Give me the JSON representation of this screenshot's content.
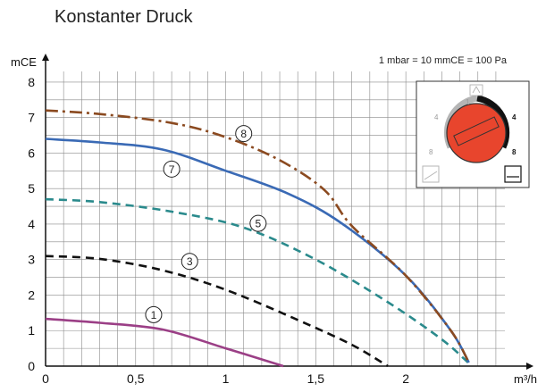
{
  "header": {
    "title": "Konstanter Druck",
    "unit_note": "1 mbar = 10 mmCE = 100 Pa"
  },
  "colors": {
    "grid": "#8a8a8a",
    "axis": "#111111",
    "curve_1": "#9b3f86",
    "curve_3": "#111111",
    "curve_5": "#2a8a8c",
    "curve_7": "#3a6ab5",
    "curve_8": "#8b4a20",
    "dial_red": "#e8452d",
    "dial_black": "#111111",
    "dial_gray": "#9a9a9a"
  },
  "chart_data": {
    "type": "line",
    "title": "Konstanter Druck",
    "xlabel": "m³/h",
    "ylabel": "mCE",
    "xlim": [
      0,
      2.55
    ],
    "ylim": [
      0,
      8.3
    ],
    "grid": true,
    "x_ticks": [
      {
        "value": 0,
        "label": "0"
      },
      {
        "value": 0.5,
        "label": "0,5"
      },
      {
        "value": 1,
        "label": "1"
      },
      {
        "value": 1.5,
        "label": "1,5"
      },
      {
        "value": 2,
        "label": "2"
      }
    ],
    "y_ticks": [
      {
        "value": 0,
        "label": "0"
      },
      {
        "value": 1,
        "label": "1"
      },
      {
        "value": 2,
        "label": "2"
      },
      {
        "value": 3,
        "label": "3"
      },
      {
        "value": 4,
        "label": "4"
      },
      {
        "value": 5,
        "label": "5"
      },
      {
        "value": 6,
        "label": "6"
      },
      {
        "value": 7,
        "label": "7"
      },
      {
        "value": 8,
        "label": "8"
      }
    ],
    "series": [
      {
        "name": "1",
        "dash": "solid",
        "color_key": "curve_1",
        "points": [
          [
            0,
            1.33
          ],
          [
            0.3,
            1.22
          ],
          [
            0.65,
            1.03
          ],
          [
            1.0,
            0.5
          ],
          [
            1.32,
            0.0
          ]
        ],
        "label_at": [
          0.6,
          1.45
        ]
      },
      {
        "name": "3",
        "dash": "dashed",
        "color_key": "curve_3",
        "points": [
          [
            0,
            3.1
          ],
          [
            0.3,
            3.02
          ],
          [
            0.65,
            2.7
          ],
          [
            1.0,
            2.15
          ],
          [
            1.4,
            1.3
          ],
          [
            1.7,
            0.6
          ],
          [
            1.9,
            0.0
          ]
        ],
        "label_at": [
          0.8,
          2.95
        ]
      },
      {
        "name": "5",
        "dash": "dashed",
        "color_key": "curve_5",
        "points": [
          [
            0,
            4.7
          ],
          [
            0.3,
            4.62
          ],
          [
            0.7,
            4.35
          ],
          [
            1.1,
            3.9
          ],
          [
            1.5,
            3.0
          ],
          [
            1.9,
            1.8
          ],
          [
            2.2,
            0.75
          ],
          [
            2.35,
            0.08
          ]
        ],
        "label_at": [
          1.18,
          4.02
        ]
      },
      {
        "name": "7",
        "dash": "solid",
        "color_key": "curve_7",
        "points": [
          [
            0,
            6.4
          ],
          [
            0.3,
            6.3
          ],
          [
            0.65,
            6.1
          ],
          [
            1.0,
            5.5
          ],
          [
            1.35,
            4.85
          ],
          [
            1.65,
            4.0
          ],
          [
            2.0,
            2.55
          ],
          [
            2.25,
            1.0
          ],
          [
            2.35,
            0.1
          ]
        ],
        "label_at": [
          0.7,
          5.55
        ]
      },
      {
        "name": "8",
        "dash": "dashdot",
        "color_key": "curve_8",
        "points": [
          [
            0,
            7.2
          ],
          [
            0.3,
            7.1
          ],
          [
            0.7,
            6.85
          ],
          [
            1.0,
            6.45
          ],
          [
            1.3,
            5.8
          ],
          [
            1.55,
            4.95
          ],
          [
            1.7,
            3.95
          ],
          [
            2.0,
            2.55
          ],
          [
            2.25,
            1.0
          ],
          [
            2.35,
            0.1
          ]
        ],
        "label_at": [
          1.1,
          6.55
        ]
      }
    ]
  },
  "dial": {
    "scale_left": [
      {
        "t": "1"
      },
      {
        "t": "4"
      },
      {
        "t": "8"
      }
    ],
    "scale_right": [
      {
        "t": "1"
      },
      {
        "t": "4"
      },
      {
        "t": "8"
      }
    ],
    "top_icon": "air-vent-icon",
    "left_icon": "proportional-pressure-icon",
    "right_icon": "constant-pressure-icon"
  }
}
